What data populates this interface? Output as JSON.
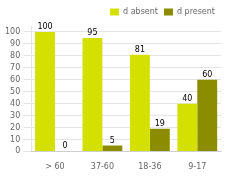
{
  "chart_data": {
    "type": "bar",
    "categories": [
      "> 60",
      "37-60",
      "18-36",
      "9-17"
    ],
    "series": [
      {
        "name": "d absent",
        "color": "#d4e100",
        "values": [
          100,
          95,
          81,
          40
        ]
      },
      {
        "name": "d present",
        "color": "#8b8c00",
        "values": [
          0,
          5,
          19,
          60
        ]
      }
    ],
    "ylim": [
      0,
      105
    ],
    "yticks": [
      0,
      10,
      20,
      30,
      40,
      50,
      60,
      70,
      80,
      90,
      100
    ],
    "grid": true,
    "legend": "upper right",
    "data_labels": true
  }
}
